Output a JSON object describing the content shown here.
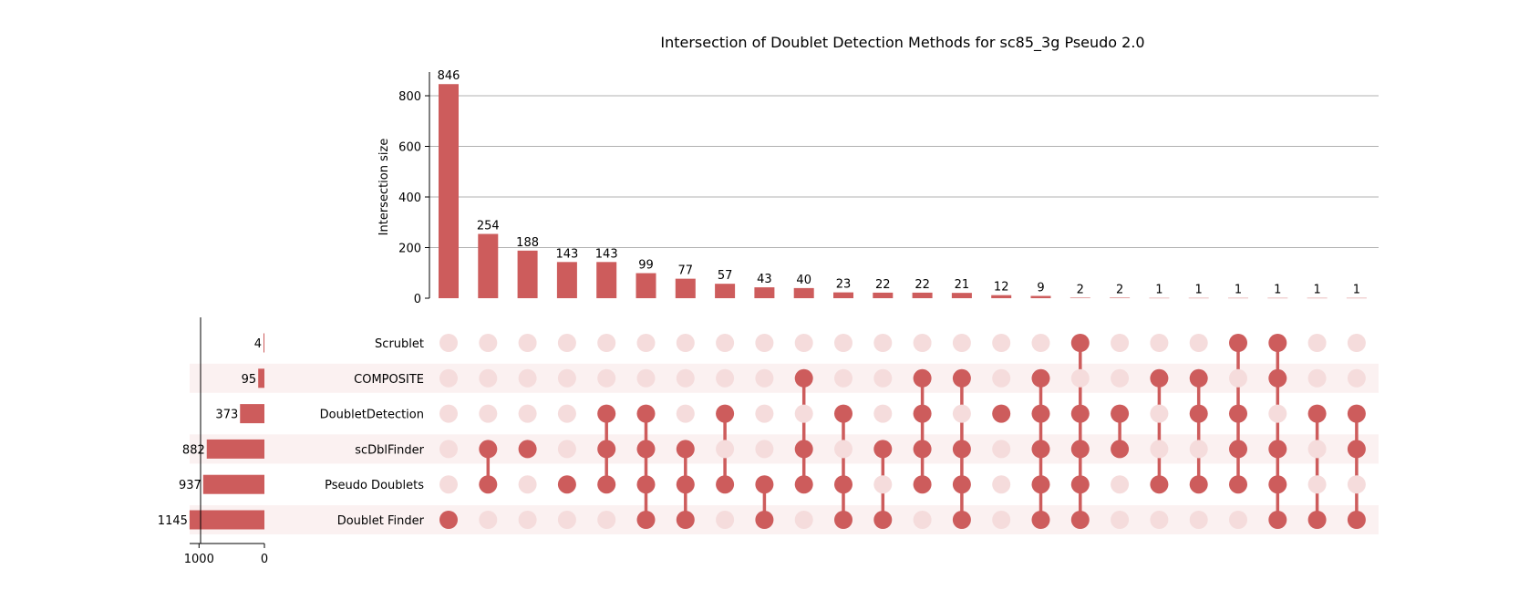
{
  "chart_data": {
    "type": "upset",
    "title": "Intersection of Doublet Detection Methods for sc85_3g Pseudo 2.0",
    "ylabel": "Intersection size",
    "ylim": [
      0,
      880
    ],
    "yticks": [
      0,
      200,
      400,
      600,
      800
    ],
    "set_size_ticks": [
      1000,
      0
    ],
    "grid": "horizontal",
    "accent_color": "#cd5c5c",
    "inactive_dot_color": "#f5dcdc",
    "row_band_color": "#fbf1f1",
    "sets": [
      {
        "name": "Scrublet",
        "size": 4
      },
      {
        "name": "COMPOSITE",
        "size": 95
      },
      {
        "name": "DoubletDetection",
        "size": 373
      },
      {
        "name": "scDblFinder",
        "size": 882
      },
      {
        "name": "Pseudo Doublets",
        "size": 937
      },
      {
        "name": "Doublet Finder",
        "size": 1145
      }
    ],
    "intersections": [
      {
        "value": 846,
        "members": [
          "Doublet Finder"
        ]
      },
      {
        "value": 254,
        "members": [
          "scDblFinder",
          "Pseudo Doublets"
        ]
      },
      {
        "value": 188,
        "members": [
          "scDblFinder"
        ]
      },
      {
        "value": 143,
        "members": [
          "Pseudo Doublets"
        ]
      },
      {
        "value": 143,
        "members": [
          "DoubletDetection",
          "scDblFinder",
          "Pseudo Doublets"
        ]
      },
      {
        "value": 99,
        "members": [
          "DoubletDetection",
          "scDblFinder",
          "Pseudo Doublets",
          "Doublet Finder"
        ]
      },
      {
        "value": 77,
        "members": [
          "scDblFinder",
          "Pseudo Doublets",
          "Doublet Finder"
        ]
      },
      {
        "value": 57,
        "members": [
          "DoubletDetection",
          "Pseudo Doublets"
        ]
      },
      {
        "value": 43,
        "members": [
          "Pseudo Doublets",
          "Doublet Finder"
        ]
      },
      {
        "value": 40,
        "members": [
          "COMPOSITE",
          "scDblFinder",
          "Pseudo Doublets"
        ]
      },
      {
        "value": 23,
        "members": [
          "DoubletDetection",
          "Pseudo Doublets",
          "Doublet Finder"
        ]
      },
      {
        "value": 22,
        "members": [
          "scDblFinder",
          "Doublet Finder"
        ]
      },
      {
        "value": 22,
        "members": [
          "COMPOSITE",
          "DoubletDetection",
          "scDblFinder",
          "Pseudo Doublets"
        ]
      },
      {
        "value": 21,
        "members": [
          "COMPOSITE",
          "scDblFinder",
          "Pseudo Doublets",
          "Doublet Finder"
        ]
      },
      {
        "value": 12,
        "members": [
          "DoubletDetection"
        ]
      },
      {
        "value": 9,
        "members": [
          "COMPOSITE",
          "DoubletDetection",
          "scDblFinder",
          "Pseudo Doublets",
          "Doublet Finder"
        ]
      },
      {
        "value": 2,
        "members": [
          "Scrublet",
          "DoubletDetection",
          "scDblFinder",
          "Pseudo Doublets",
          "Doublet Finder"
        ]
      },
      {
        "value": 2,
        "members": [
          "DoubletDetection",
          "scDblFinder"
        ]
      },
      {
        "value": 1,
        "members": [
          "COMPOSITE",
          "Pseudo Doublets"
        ]
      },
      {
        "value": 1,
        "members": [
          "COMPOSITE",
          "DoubletDetection",
          "Pseudo Doublets"
        ]
      },
      {
        "value": 1,
        "members": [
          "Scrublet",
          "DoubletDetection",
          "scDblFinder",
          "Pseudo Doublets"
        ]
      },
      {
        "value": 1,
        "members": [
          "Scrublet",
          "COMPOSITE",
          "scDblFinder",
          "Pseudo Doublets",
          "Doublet Finder"
        ]
      },
      {
        "value": 1,
        "members": [
          "DoubletDetection",
          "Doublet Finder"
        ]
      },
      {
        "value": 1,
        "members": [
          "DoubletDetection",
          "scDblFinder",
          "Doublet Finder"
        ]
      }
    ]
  }
}
